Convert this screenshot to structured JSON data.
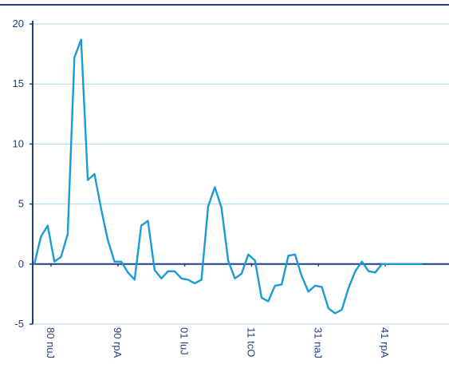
{
  "chart_data": {
    "type": "line",
    "title": "",
    "xlabel": "",
    "ylabel": "",
    "ylim": [
      -5,
      20
    ],
    "yticks": [
      -5,
      0,
      5,
      10,
      15,
      20
    ],
    "grid": "horizontal",
    "x_tick_labels": [
      "Jun 08",
      "Apr 09",
      "Jul 10",
      "Oct 11",
      "Jan 13",
      "Apr 14"
    ],
    "x_tick_positions": [
      2.5,
      12.5,
      22.5,
      32.5,
      42.5,
      52.5
    ],
    "x_range": [
      0,
      60
    ],
    "series": [
      {
        "color": "#1a9ad6",
        "x": [
          0,
          1,
          2,
          3,
          4,
          5,
          6,
          7,
          8,
          9,
          10,
          11,
          12,
          13,
          14,
          15,
          16,
          17,
          18,
          19,
          20,
          21,
          22,
          23,
          24,
          25,
          26,
          27,
          28,
          29,
          30,
          31,
          32,
          33,
          34,
          35,
          36,
          37,
          38,
          39,
          40,
          41,
          42,
          43,
          44,
          45,
          46,
          47,
          48,
          49,
          50,
          51,
          52,
          53,
          54,
          55,
          56,
          57,
          58,
          59,
          60
        ],
        "values": [
          0.0,
          2.3,
          3.2,
          0.2,
          0.6,
          2.5,
          17.2,
          18.7,
          7.0,
          7.5,
          4.6,
          2.0,
          0.2,
          0.2,
          -0.7,
          -1.3,
          3.2,
          3.6,
          -0.5,
          -1.2,
          -0.6,
          -0.6,
          -1.2,
          -1.3,
          -1.6,
          -1.3,
          4.8,
          6.4,
          4.7,
          0.3,
          -1.2,
          -0.8,
          0.8,
          0.3,
          -2.8,
          -3.1,
          -1.8,
          -1.7,
          0.7,
          0.8,
          -1.0,
          -2.3,
          -1.8,
          -1.9,
          -3.7,
          -4.1,
          -3.8,
          -2.0,
          -0.6,
          0.2,
          -0.6,
          -0.7,
          0,
          0,
          0,
          0,
          0,
          0,
          0,
          0,
          0
        ]
      }
    ]
  }
}
